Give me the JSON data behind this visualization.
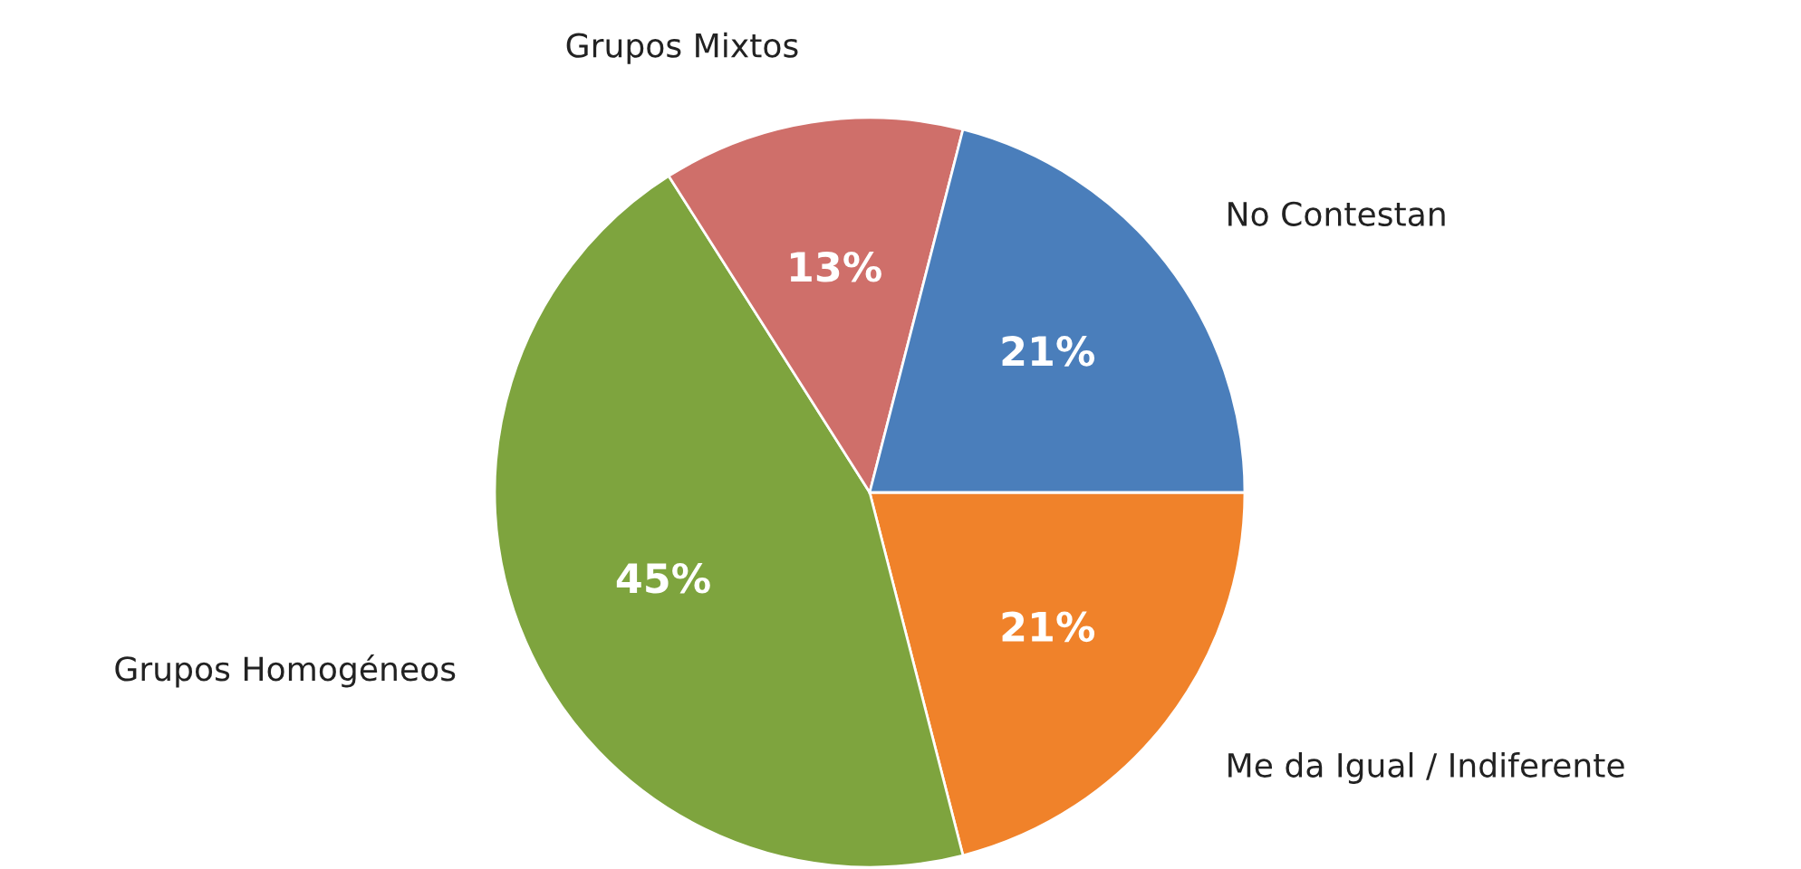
{
  "chart_data": {
    "type": "pie",
    "categories": [
      "Me da Igual / Indiferente",
      "Grupos Homogéneos",
      "Grupos Mixtos",
      "No Contestan"
    ],
    "values": [
      21,
      45,
      13,
      21
    ],
    "value_labels": [
      "21%",
      "45%",
      "13%",
      "21%"
    ],
    "colors": [
      "#f0822a",
      "#7ea43e",
      "#cf6f6a",
      "#4a7ebb"
    ],
    "legend": false
  }
}
